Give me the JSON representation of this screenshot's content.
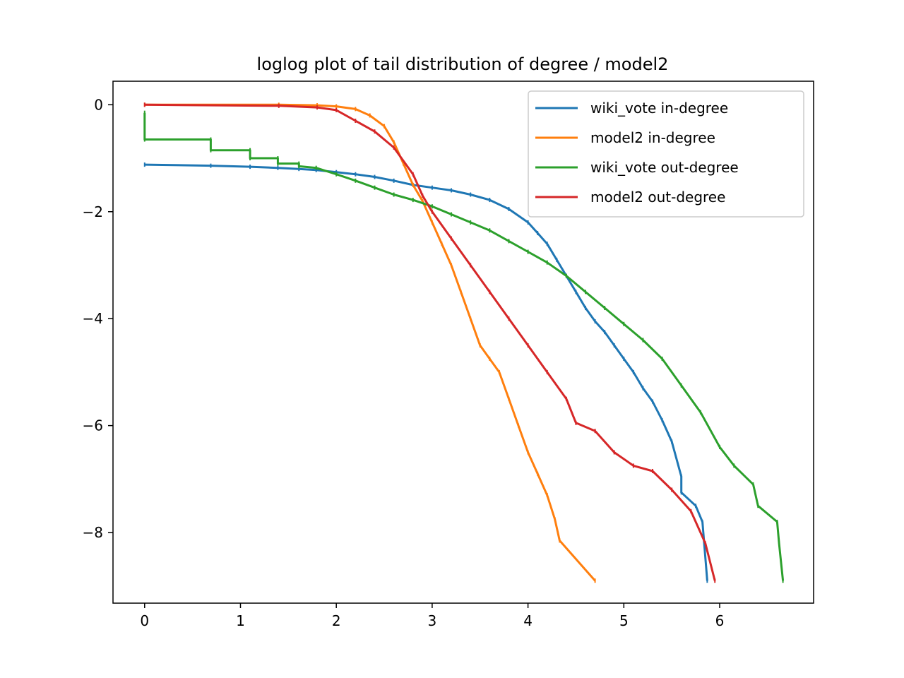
{
  "chart_data": {
    "type": "line",
    "title": "loglog plot of tail distribution of degree / model2",
    "xlabel": "",
    "ylabel": "",
    "xlim": [
      -0.33,
      6.98
    ],
    "ylim": [
      -9.32,
      0.44
    ],
    "x_ticks": [
      0,
      1,
      2,
      3,
      4,
      5,
      6
    ],
    "x_tick_labels": [
      "0",
      "1",
      "2",
      "3",
      "4",
      "5",
      "6"
    ],
    "y_ticks": [
      0,
      -2,
      -4,
      -6,
      -8
    ],
    "y_tick_labels": [
      "0",
      "−2",
      "−4",
      "−6",
      "−8"
    ],
    "legend_position": "top-right",
    "grid": false,
    "series": [
      {
        "name": "wiki_vote in-degree",
        "color": "#1f77b4",
        "points": [
          [
            0,
            -1.12
          ],
          [
            0.69,
            -1.14
          ],
          [
            1.1,
            -1.16
          ],
          [
            1.39,
            -1.18
          ],
          [
            1.61,
            -1.2
          ],
          [
            1.79,
            -1.22
          ],
          [
            2.0,
            -1.26
          ],
          [
            2.2,
            -1.3
          ],
          [
            2.4,
            -1.35
          ],
          [
            2.6,
            -1.42
          ],
          [
            2.8,
            -1.5
          ],
          [
            3.0,
            -1.55
          ],
          [
            3.2,
            -1.6
          ],
          [
            3.4,
            -1.68
          ],
          [
            3.6,
            -1.78
          ],
          [
            3.8,
            -1.95
          ],
          [
            4.0,
            -2.2
          ],
          [
            4.1,
            -2.4
          ],
          [
            4.2,
            -2.6
          ],
          [
            4.3,
            -2.9
          ],
          [
            4.4,
            -3.2
          ],
          [
            4.5,
            -3.5
          ],
          [
            4.6,
            -3.8
          ],
          [
            4.7,
            -4.05
          ],
          [
            4.8,
            -4.25
          ],
          [
            4.9,
            -4.5
          ],
          [
            5.0,
            -4.75
          ],
          [
            5.1,
            -5.0
          ],
          [
            5.2,
            -5.3
          ],
          [
            5.3,
            -5.55
          ],
          [
            5.4,
            -5.9
          ],
          [
            5.5,
            -6.3
          ],
          [
            5.6,
            -6.95
          ],
          [
            5.6,
            -7.25
          ],
          [
            5.75,
            -7.5
          ],
          [
            5.82,
            -7.8
          ],
          [
            5.87,
            -8.9
          ]
        ]
      },
      {
        "name": "model2 in-degree",
        "color": "#ff7f0e",
        "points": [
          [
            0,
            0.0
          ],
          [
            1.4,
            0.0
          ],
          [
            1.8,
            -0.01
          ],
          [
            2.0,
            -0.03
          ],
          [
            2.2,
            -0.08
          ],
          [
            2.35,
            -0.2
          ],
          [
            2.5,
            -0.4
          ],
          [
            2.6,
            -0.7
          ],
          [
            2.7,
            -1.1
          ],
          [
            2.8,
            -1.5
          ],
          [
            2.9,
            -1.8
          ],
          [
            3.0,
            -2.2
          ],
          [
            3.1,
            -2.6
          ],
          [
            3.2,
            -3.0
          ],
          [
            3.3,
            -3.5
          ],
          [
            3.4,
            -4.0
          ],
          [
            3.5,
            -4.5
          ],
          [
            3.6,
            -4.75
          ],
          [
            3.7,
            -5.0
          ],
          [
            3.8,
            -5.5
          ],
          [
            3.9,
            -6.0
          ],
          [
            4.0,
            -6.5
          ],
          [
            4.1,
            -6.9
          ],
          [
            4.2,
            -7.3
          ],
          [
            4.28,
            -7.75
          ],
          [
            4.33,
            -8.15
          ],
          [
            4.7,
            -8.9
          ]
        ]
      },
      {
        "name": "wiki_vote out-degree",
        "color": "#2ca02c",
        "points": [
          [
            0,
            -0.15
          ],
          [
            0,
            -0.65
          ],
          [
            0.69,
            -0.65
          ],
          [
            0.69,
            -0.85
          ],
          [
            1.1,
            -0.85
          ],
          [
            1.1,
            -1.0
          ],
          [
            1.39,
            -1.0
          ],
          [
            1.39,
            -1.1
          ],
          [
            1.61,
            -1.1
          ],
          [
            1.61,
            -1.15
          ],
          [
            1.79,
            -1.18
          ],
          [
            2.0,
            -1.3
          ],
          [
            2.2,
            -1.42
          ],
          [
            2.4,
            -1.55
          ],
          [
            2.6,
            -1.68
          ],
          [
            2.8,
            -1.78
          ],
          [
            3.0,
            -1.9
          ],
          [
            3.2,
            -2.05
          ],
          [
            3.4,
            -2.2
          ],
          [
            3.6,
            -2.35
          ],
          [
            3.8,
            -2.55
          ],
          [
            4.0,
            -2.75
          ],
          [
            4.2,
            -2.95
          ],
          [
            4.4,
            -3.2
          ],
          [
            4.6,
            -3.5
          ],
          [
            4.8,
            -3.8
          ],
          [
            5.0,
            -4.1
          ],
          [
            5.2,
            -4.4
          ],
          [
            5.4,
            -4.75
          ],
          [
            5.6,
            -5.25
          ],
          [
            5.8,
            -5.75
          ],
          [
            6.0,
            -6.4
          ],
          [
            6.15,
            -6.75
          ],
          [
            6.35,
            -7.1
          ],
          [
            6.4,
            -7.5
          ],
          [
            6.6,
            -7.8
          ],
          [
            6.62,
            -8.2
          ],
          [
            6.66,
            -8.9
          ]
        ]
      },
      {
        "name": "model2 out-degree",
        "color": "#d62728",
        "points": [
          [
            0,
            0.0
          ],
          [
            1.4,
            -0.02
          ],
          [
            1.8,
            -0.05
          ],
          [
            2.0,
            -0.1
          ],
          [
            2.2,
            -0.3
          ],
          [
            2.4,
            -0.5
          ],
          [
            2.6,
            -0.8
          ],
          [
            2.8,
            -1.3
          ],
          [
            2.9,
            -1.7
          ],
          [
            3.0,
            -2.0
          ],
          [
            3.2,
            -2.5
          ],
          [
            3.4,
            -3.0
          ],
          [
            3.6,
            -3.5
          ],
          [
            3.8,
            -4.0
          ],
          [
            4.0,
            -4.5
          ],
          [
            4.2,
            -5.0
          ],
          [
            4.4,
            -5.5
          ],
          [
            4.5,
            -5.95
          ],
          [
            4.7,
            -6.1
          ],
          [
            4.9,
            -6.5
          ],
          [
            5.1,
            -6.75
          ],
          [
            5.3,
            -6.85
          ],
          [
            5.5,
            -7.2
          ],
          [
            5.7,
            -7.6
          ],
          [
            5.85,
            -8.2
          ],
          [
            5.95,
            -8.9
          ]
        ]
      }
    ]
  }
}
